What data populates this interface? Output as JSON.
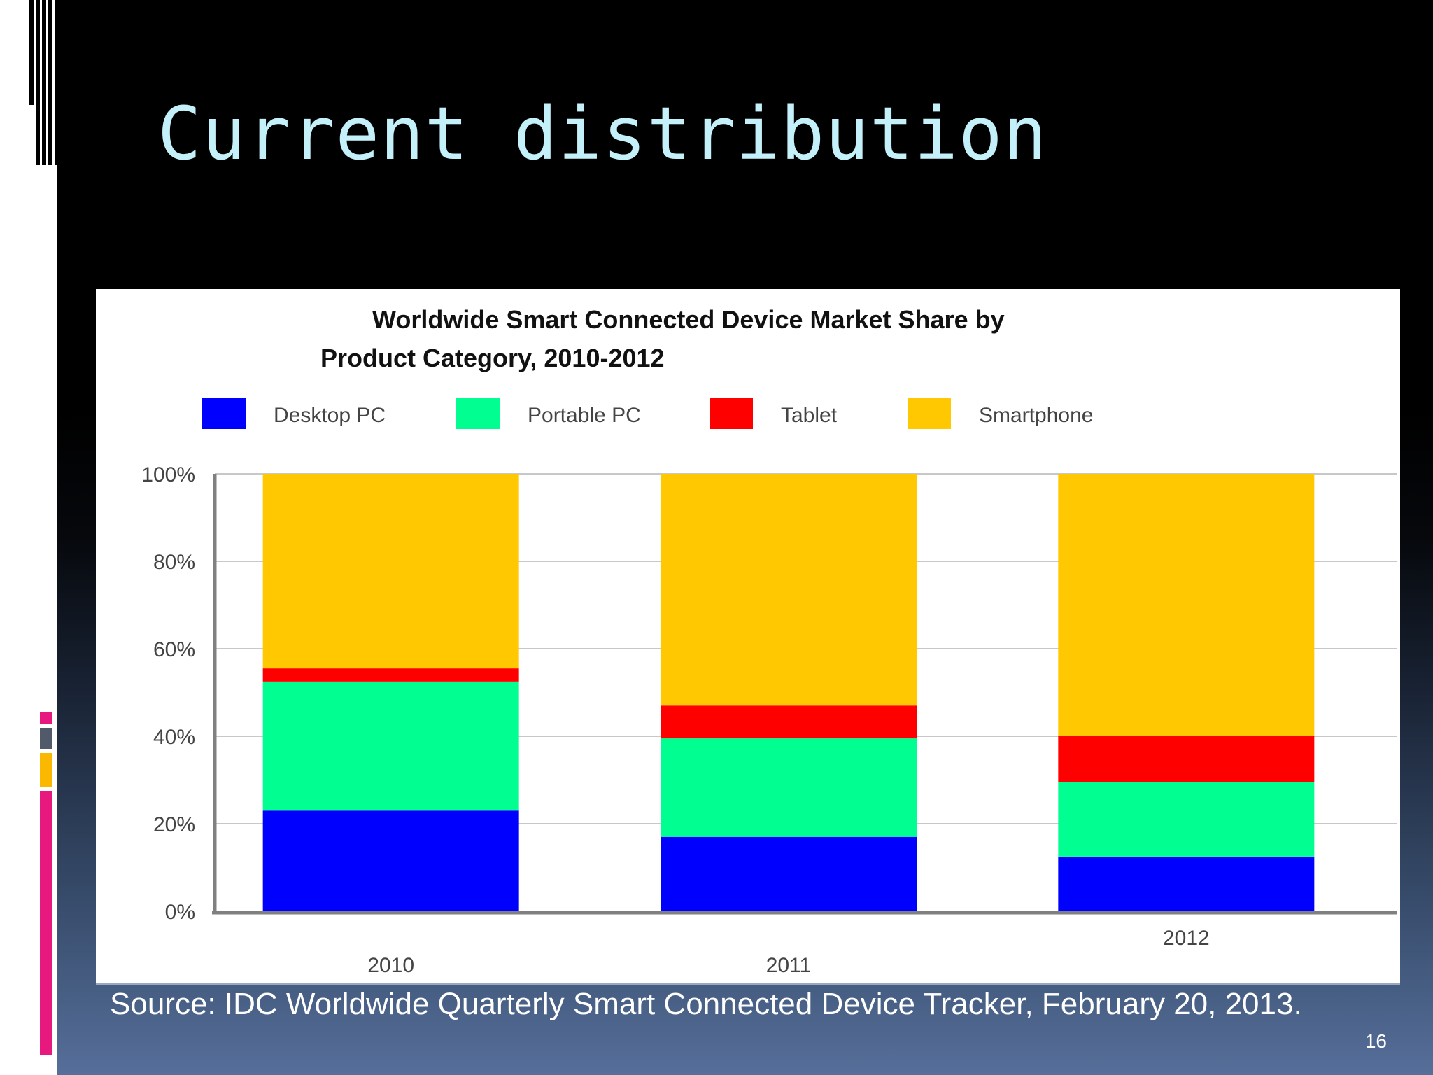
{
  "slide": {
    "title": "Current distribution",
    "source": "Source: IDC Worldwide Quarterly Smart Connected Device Tracker, February 20, 2013.",
    "page_number": "16"
  },
  "chart_data": {
    "type": "bar",
    "stacked": true,
    "title_line1": "Worldwide Smart Connected Device Market Share by",
    "title_line2": "Product Category, 2010-2012",
    "categories": [
      "2010",
      "2011",
      "2012"
    ],
    "series": [
      {
        "name": "Desktop PC",
        "color": "#0000ff",
        "values": [
          23,
          17,
          12.5
        ]
      },
      {
        "name": "Portable PC",
        "color": "#00ff90",
        "values": [
          29.5,
          22.5,
          17
        ]
      },
      {
        "name": "Tablet",
        "color": "#ff0000",
        "values": [
          3,
          7.5,
          10.5
        ]
      },
      {
        "name": "Smartphone",
        "color": "#ffc800",
        "values": [
          44.5,
          53,
          60
        ]
      }
    ],
    "y_ticks": [
      "0%",
      "20%",
      "40%",
      "60%",
      "80%",
      "100%"
    ],
    "ylim": [
      0,
      100
    ],
    "grid": true,
    "legend_position": "top"
  }
}
